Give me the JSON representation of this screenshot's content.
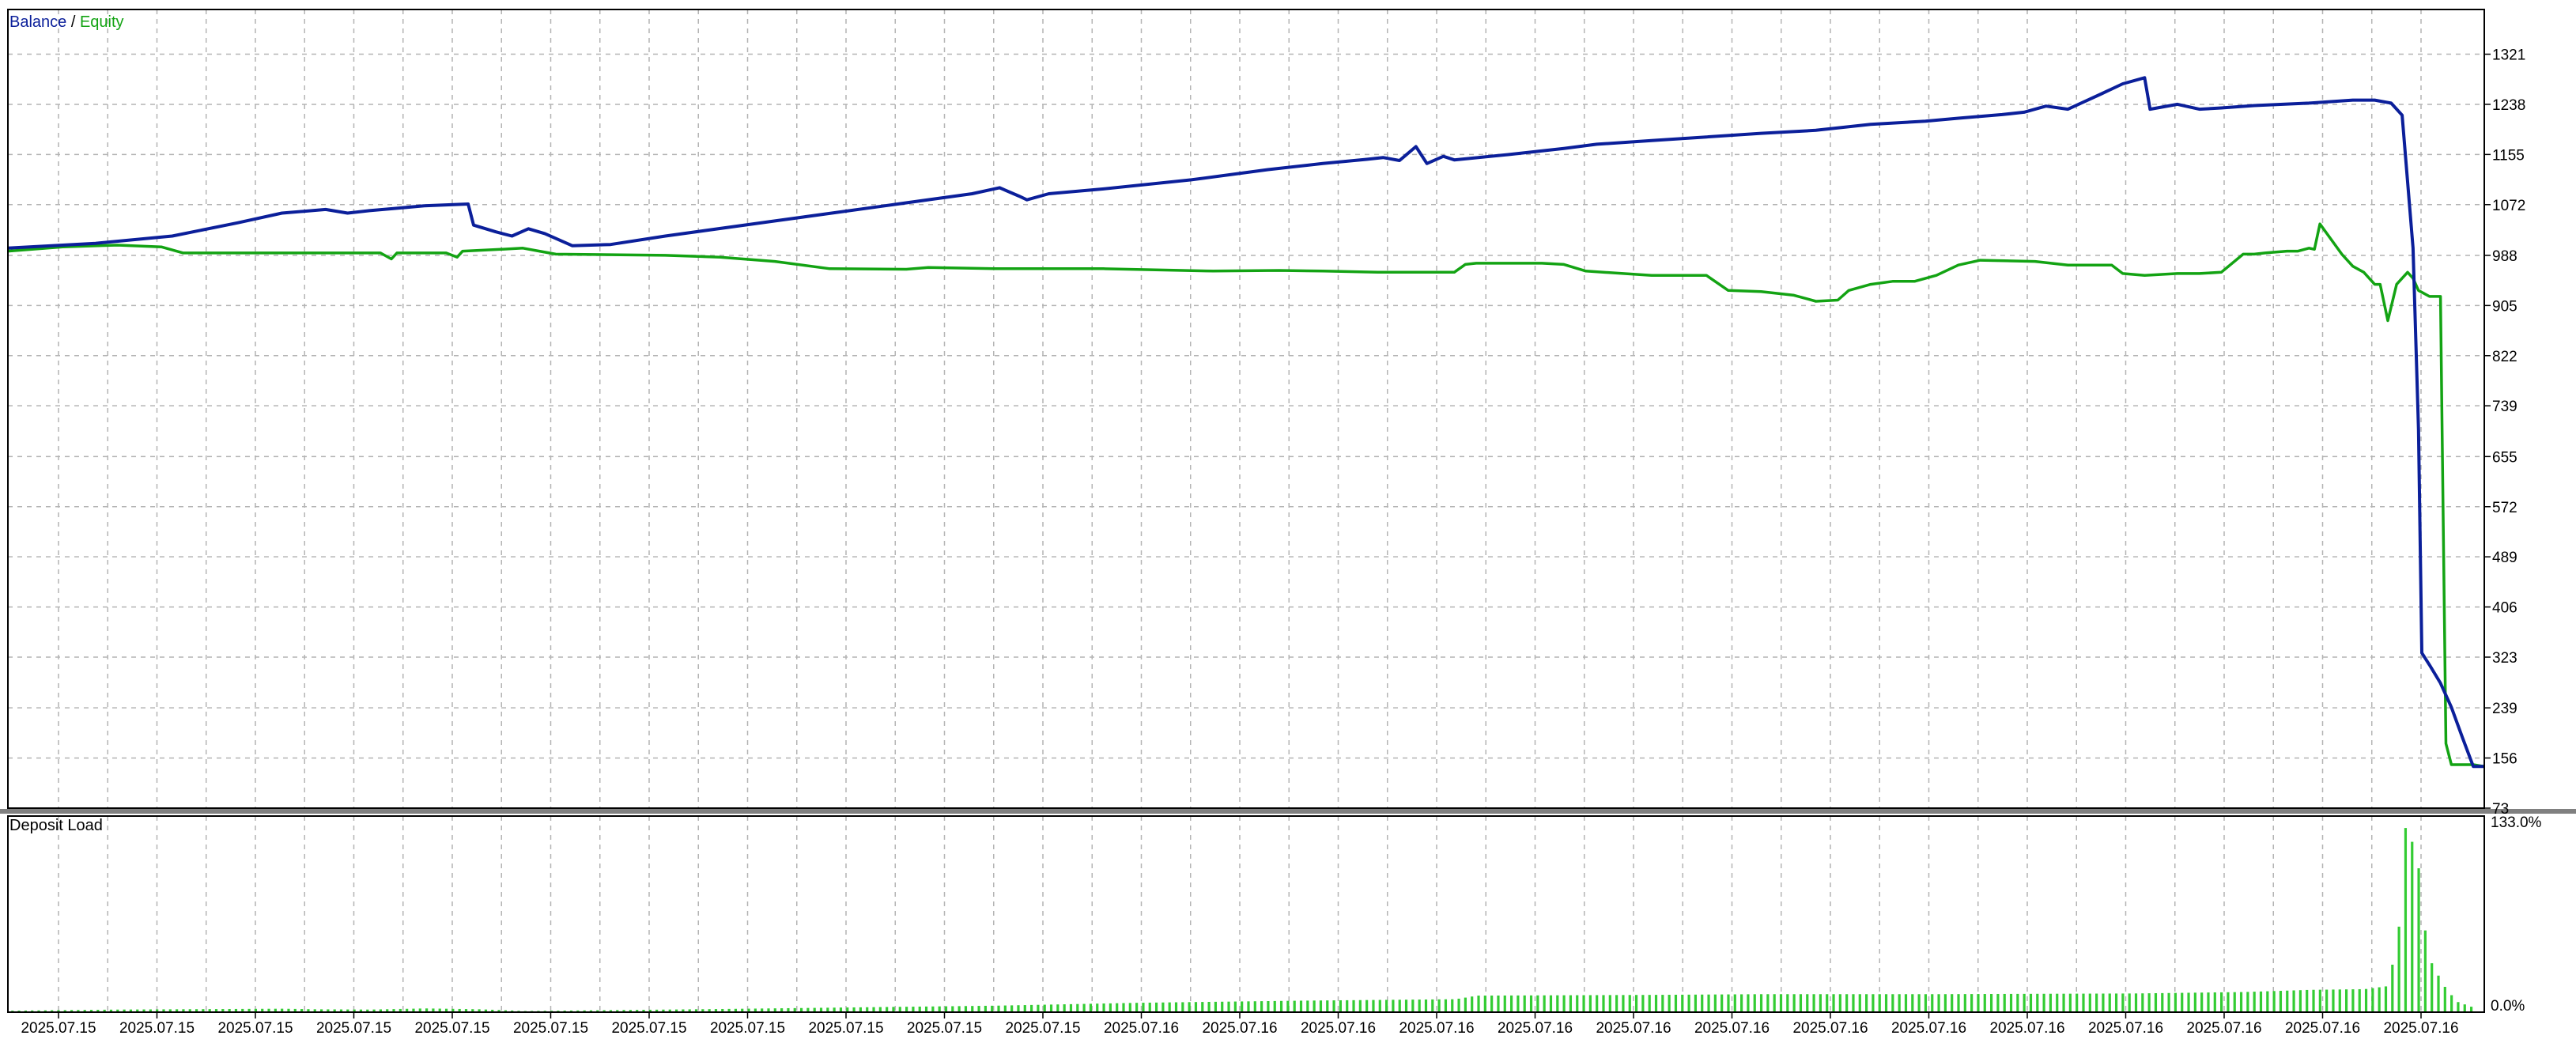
{
  "colors": {
    "balance": "#0b1f9a",
    "equity": "#13a313",
    "deposit_load": "#33cc33",
    "grid": "#b4b4b4",
    "frame": "#000000",
    "divider": "#808080"
  },
  "chart_data": [
    {
      "type": "line",
      "legend": {
        "balance": "Balance",
        "separator": " / ",
        "equity": "Equity",
        "position": "top-left"
      },
      "grid": true,
      "ylim": [
        73,
        1395
      ],
      "y_ticks": [
        "1321",
        "1238",
        "1155",
        "1072",
        "988",
        "905",
        "822",
        "739",
        "655",
        "572",
        "489",
        "406",
        "323",
        "239",
        "156",
        "73"
      ],
      "x_tick_labels": [
        "2025.07.15",
        "2025.07.15",
        "2025.07.15",
        "2025.07.15",
        "2025.07.15",
        "2025.07.15",
        "2025.07.15",
        "2025.07.15",
        "2025.07.15",
        "2025.07.15",
        "2025.07.15",
        "2025.07.16",
        "2025.07.16",
        "2025.07.16",
        "2025.07.16",
        "2025.07.16",
        "2025.07.16",
        "2025.07.16",
        "2025.07.16",
        "2025.07.16",
        "2025.07.16",
        "2025.07.16",
        "2025.07.16",
        "2025.07.16",
        "2025.07.16"
      ],
      "series": [
        {
          "name": "Balance",
          "color": "#0b1f9a",
          "points": [
            [
              0,
              1000
            ],
            [
              8,
              1008
            ],
            [
              15,
              1020
            ],
            [
              21,
              1042
            ],
            [
              25,
              1058
            ],
            [
              29,
              1064
            ],
            [
              31,
              1058
            ],
            [
              33,
              1062
            ],
            [
              38,
              1070
            ],
            [
              42,
              1073
            ],
            [
              42.5,
              1038
            ],
            [
              44.5,
              1027
            ],
            [
              46,
              1020
            ],
            [
              47.5,
              1032
            ],
            [
              49,
              1024
            ],
            [
              51.5,
              1004
            ],
            [
              55,
              1006
            ],
            [
              60,
              1020
            ],
            [
              70,
              1045
            ],
            [
              80,
              1070
            ],
            [
              88,
              1090
            ],
            [
              90.5,
              1100
            ],
            [
              92.3,
              1086
            ],
            [
              93,
              1080
            ],
            [
              95,
              1090
            ],
            [
              100,
              1098
            ],
            [
              108,
              1113
            ],
            [
              115,
              1130
            ],
            [
              120,
              1140
            ],
            [
              124,
              1147
            ],
            [
              125.5,
              1150
            ],
            [
              127,
              1145
            ],
            [
              128.5,
              1168
            ],
            [
              129.5,
              1140
            ],
            [
              131,
              1152
            ],
            [
              132,
              1146
            ],
            [
              137,
              1155
            ],
            [
              142,
              1165
            ],
            [
              145,
              1172
            ],
            [
              150,
              1178
            ],
            [
              155,
              1184
            ],
            [
              160,
              1190
            ],
            [
              165,
              1195
            ],
            [
              170,
              1205
            ],
            [
              175,
              1210
            ],
            [
              178,
              1215
            ],
            [
              182,
              1221
            ],
            [
              184,
              1225
            ],
            [
              186,
              1235
            ],
            [
              188,
              1230
            ],
            [
              191,
              1255
            ],
            [
              193,
              1272
            ],
            [
              195,
              1282
            ],
            [
              195.5,
              1230
            ],
            [
              198,
              1238
            ],
            [
              200,
              1230
            ],
            [
              202,
              1232
            ],
            [
              205,
              1236
            ],
            [
              210,
              1240
            ],
            [
              214,
              1245
            ],
            [
              216,
              1245
            ],
            [
              217.5,
              1240
            ],
            [
              218.5,
              1220
            ],
            [
              219.5,
              1000
            ],
            [
              220,
              700
            ],
            [
              220.3,
              330
            ],
            [
              221,
              310
            ],
            [
              222,
              280
            ],
            [
              223,
              240
            ],
            [
              224,
              190
            ],
            [
              225,
              142
            ],
            [
              226,
              142
            ]
          ]
        },
        {
          "name": "Equity",
          "color": "#13a313",
          "points": [
            [
              0,
              995
            ],
            [
              5,
              1002
            ],
            [
              10,
              1005
            ],
            [
              14,
              1002
            ],
            [
              16,
              992
            ],
            [
              20,
              992
            ],
            [
              30,
              992
            ],
            [
              34,
              992
            ],
            [
              35,
              982
            ],
            [
              35.5,
              992
            ],
            [
              40,
              992
            ],
            [
              41,
              985
            ],
            [
              41.5,
              995
            ],
            [
              45,
              998
            ],
            [
              47,
              1000
            ],
            [
              48.5,
              995
            ],
            [
              50,
              990
            ],
            [
              60,
              988
            ],
            [
              65,
              985
            ],
            [
              70,
              978
            ],
            [
              75,
              966
            ],
            [
              82,
              965
            ],
            [
              84,
              968
            ],
            [
              90,
              966
            ],
            [
              100,
              966
            ],
            [
              110,
              962
            ],
            [
              116,
              963
            ],
            [
              120,
              962
            ],
            [
              125,
              960
            ],
            [
              132,
              960
            ],
            [
              133,
              973
            ],
            [
              134,
              975
            ],
            [
              140,
              975
            ],
            [
              142,
              973
            ],
            [
              144,
              962
            ],
            [
              150,
              955
            ],
            [
              155,
              955
            ],
            [
              157,
              930
            ],
            [
              160,
              928
            ],
            [
              163,
              922
            ],
            [
              165,
              912
            ],
            [
              167,
              914
            ],
            [
              168,
              930
            ],
            [
              170,
              940
            ],
            [
              172,
              945
            ],
            [
              174,
              945
            ],
            [
              176,
              955
            ],
            [
              178,
              972
            ],
            [
              180,
              980
            ],
            [
              185,
              978
            ],
            [
              188,
              972
            ],
            [
              192,
              972
            ],
            [
              193,
              958
            ],
            [
              195,
              955
            ],
            [
              198,
              958
            ],
            [
              200,
              958
            ],
            [
              202,
              960
            ],
            [
              204,
              990
            ],
            [
              205,
              990
            ],
            [
              206,
              992
            ],
            [
              208,
              995
            ],
            [
              209,
              995
            ],
            [
              210,
              1000
            ],
            [
              210.5,
              998
            ],
            [
              211,
              1040
            ],
            [
              213,
              990
            ],
            [
              214,
              970
            ],
            [
              215,
              960
            ],
            [
              216,
              940
            ],
            [
              216.5,
              940
            ],
            [
              217.2,
              880
            ],
            [
              218,
              940
            ],
            [
              219,
              960
            ],
            [
              219.5,
              950
            ],
            [
              220,
              930
            ],
            [
              221,
              920
            ],
            [
              222,
              920
            ],
            [
              222.5,
              180
            ],
            [
              223,
              145
            ],
            [
              225,
              145
            ],
            [
              226,
              142
            ]
          ]
        }
      ]
    },
    {
      "type": "bar",
      "title": "Deposit Load",
      "ylim": [
        0,
        133
      ],
      "y_ticks": [
        "133.0%",
        "0.0%"
      ],
      "profile": [
        [
          0,
          1.0
        ],
        [
          10,
          1.8
        ],
        [
          25,
          2.4
        ],
        [
          28,
          2.0
        ],
        [
          33,
          1.8
        ],
        [
          38,
          2.6
        ],
        [
          43,
          2.0
        ],
        [
          47,
          0.8
        ],
        [
          55,
          1.4
        ],
        [
          65,
          2.2
        ],
        [
          78,
          3.4
        ],
        [
          90,
          4.5
        ],
        [
          103,
          6.5
        ],
        [
          118,
          8.0
        ],
        [
          132,
          9.0
        ],
        [
          134,
          11.5
        ],
        [
          150,
          12.0
        ],
        [
          160,
          12.5
        ],
        [
          176,
          12.5
        ],
        [
          194,
          13.0
        ],
        [
          204,
          14.0
        ],
        [
          210,
          15.5
        ],
        [
          215,
          16.0
        ],
        [
          217,
          18.0
        ],
        [
          218,
          48.0
        ],
        [
          218.7,
          128.0
        ],
        [
          219.2,
          120.0
        ],
        [
          219.7,
          112.0
        ],
        [
          220.2,
          82.0
        ],
        [
          220.7,
          40.0
        ],
        [
          221.5,
          28.0
        ],
        [
          222.5,
          15.0
        ],
        [
          223.5,
          7.0
        ],
        [
          225,
          3.0
        ]
      ]
    }
  ]
}
